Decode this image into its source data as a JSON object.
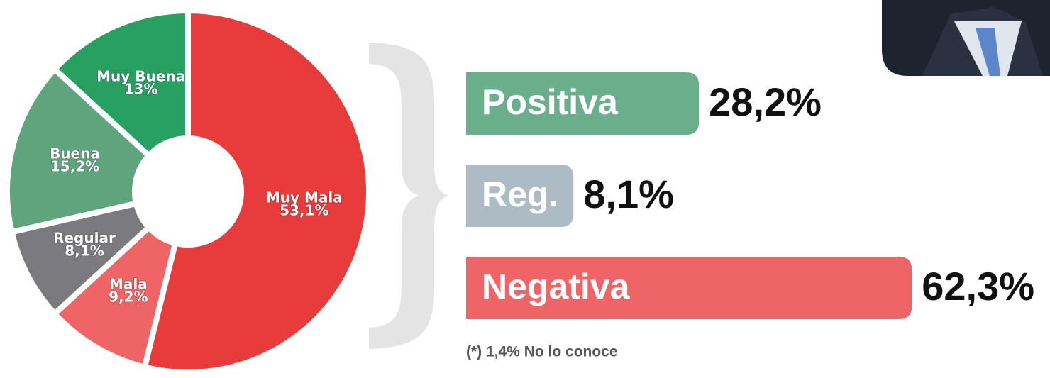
{
  "chart_data": [
    {
      "type": "donut",
      "categories": [
        "Muy Mala",
        "Mala",
        "Regular",
        "Buena",
        "Muy Buena"
      ],
      "values": [
        53.1,
        9.2,
        8.1,
        15.2,
        13
      ],
      "value_labels": [
        "53,1%",
        "9,2%",
        "8,1%",
        "15,2%",
        "13%"
      ],
      "colors": [
        "#e83c3c",
        "#ef6464",
        "#7b7b7f",
        "#5ea57e",
        "#27a062"
      ]
    },
    {
      "type": "bar",
      "categories": [
        "Positiva",
        "Reg.",
        "Negativa"
      ],
      "values": [
        28.2,
        8.1,
        62.3
      ],
      "value_labels": [
        "28,2%",
        "8,1%",
        "62,3%"
      ],
      "colors": [
        "#6aaf8c",
        "#adbcc4",
        "#ef6567"
      ]
    }
  ],
  "note": "(*) 1,4% No lo conoce"
}
